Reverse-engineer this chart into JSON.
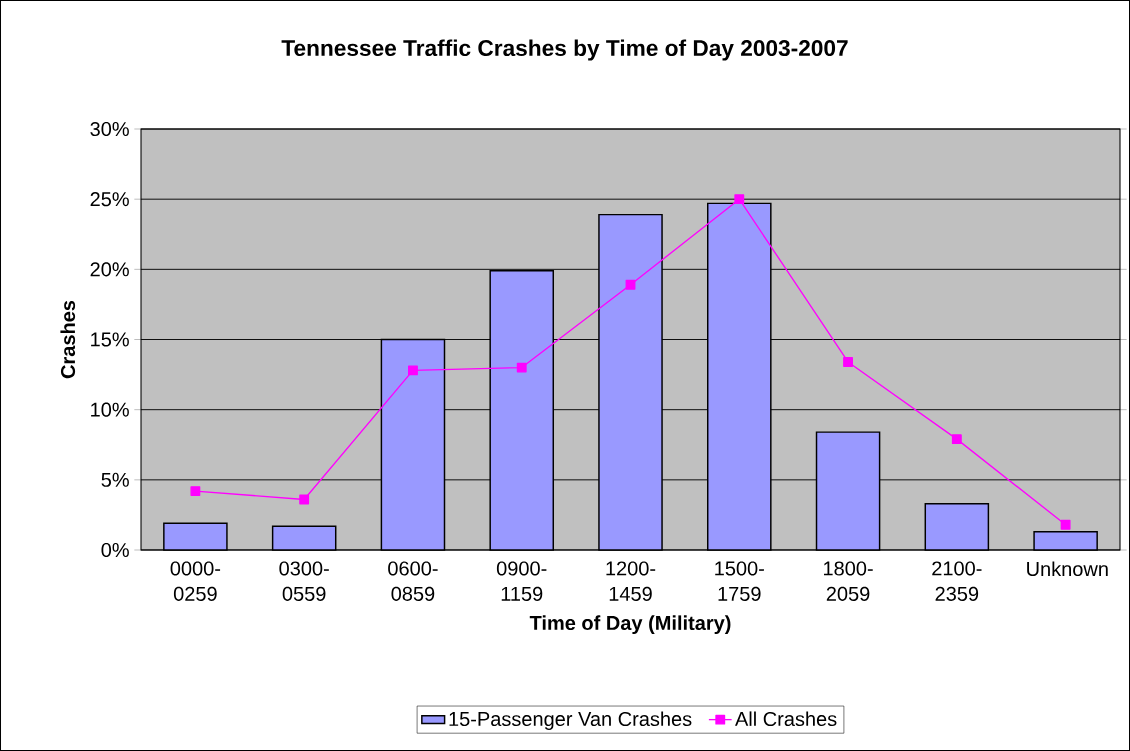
{
  "chart_data": {
    "type": "bar",
    "title": "Tennessee Traffic Crashes by Time of Day 2003-2007",
    "xlabel": "Time of Day (Military)",
    "ylabel": "Crashes",
    "categories": [
      "0000-0259",
      "0300-0559",
      "0600-0859",
      "0900-1159",
      "1200-1459",
      "1500-1759",
      "1800-2059",
      "2100-2359",
      "Unknown"
    ],
    "series": [
      {
        "name": "15-Passenger Van Crashes",
        "type": "bar",
        "color": "#9999ff",
        "values": [
          1.9,
          1.7,
          15.0,
          19.9,
          23.9,
          24.7,
          8.4,
          3.3,
          1.3
        ]
      },
      {
        "name": "All Crashes",
        "type": "line",
        "color": "#ff00ff",
        "values": [
          4.2,
          3.6,
          12.8,
          13.0,
          18.9,
          25.0,
          13.4,
          7.9,
          1.8
        ]
      }
    ],
    "ylim": [
      0,
      30
    ],
    "yticks": [
      {
        "value": 0,
        "label": "0%"
      },
      {
        "value": 5,
        "label": "5%"
      },
      {
        "value": 10,
        "label": "10%"
      },
      {
        "value": 15,
        "label": "15%"
      },
      {
        "value": 20,
        "label": "20%"
      },
      {
        "value": 25,
        "label": "25%"
      },
      {
        "value": 30,
        "label": "30%"
      }
    ],
    "grid": "y",
    "legend": "bottom",
    "marker": "square"
  }
}
